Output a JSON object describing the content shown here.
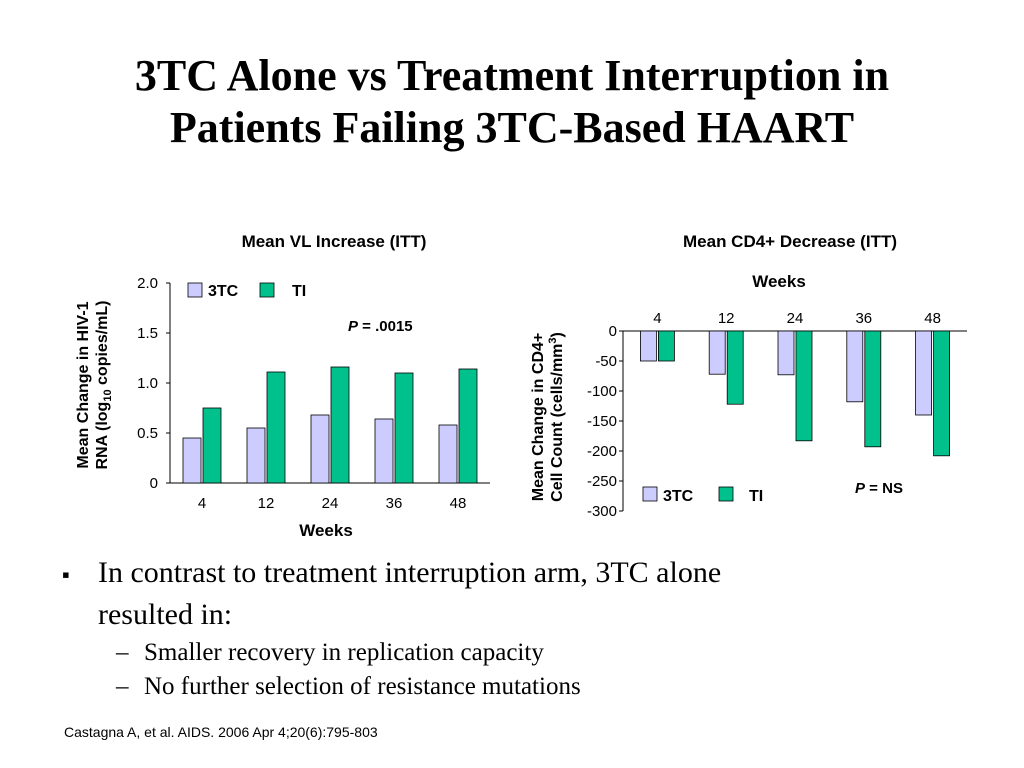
{
  "slide": {
    "title_line1": "3TC Alone vs Treatment Interruption in",
    "title_line2": "Patients Failing 3TC-Based HAART",
    "bullet_text_line1": "In contrast to treatment interruption arm, 3TC alone",
    "bullet_text_line2": "resulted in:",
    "sub_bullets": [
      "Smaller recovery in replication capacity",
      "No further selection of resistance mutations"
    ],
    "citation": "Castagna A, et al. AIDS. 2006 Apr 4;20(6):795-803"
  },
  "colors": {
    "series_3tc": "#ccccff",
    "series_ti": "#00c08b",
    "axis": "#000000"
  },
  "chart_data": [
    {
      "type": "bar",
      "title": "Mean VL Increase (ITT)",
      "xlabel": "Weeks",
      "ylabel_line1": "Mean Change in HIV-1",
      "ylabel_line2_pre": "RNA (log",
      "ylabel_line2_sub": "10",
      "ylabel_line2_post": " copies/mL)",
      "ylim": [
        0,
        2.0
      ],
      "ytick_labels": [
        "0",
        "0.5",
        "1.0",
        "1.5",
        "2.0"
      ],
      "categories": [
        "4",
        "12",
        "24",
        "36",
        "48"
      ],
      "series": [
        {
          "name": "3TC",
          "values": [
            0.45,
            0.55,
            0.68,
            0.64,
            0.58
          ]
        },
        {
          "name": "TI",
          "values": [
            0.75,
            1.11,
            1.16,
            1.1,
            1.14
          ]
        }
      ],
      "annotation_p": "P",
      "annotation_rest": " = .0015",
      "legend": "top-left"
    },
    {
      "type": "bar",
      "title": "Mean CD4+ Decrease (ITT)",
      "xlabel": "Weeks",
      "xaxis_position": "top",
      "ylabel_line1": "Mean Change in CD4+",
      "ylabel_line2_pre": "Cell Count (cells/mm",
      "ylabel_line2_sup": "3",
      "ylabel_line2_post": ")",
      "ylim": [
        -300,
        0
      ],
      "ytick_labels": [
        "0",
        "-50",
        "-100",
        "-150",
        "-200",
        "-250",
        "-300"
      ],
      "categories": [
        "4",
        "12",
        "24",
        "36",
        "48"
      ],
      "series": [
        {
          "name": "3TC",
          "values": [
            -50,
            -72,
            -73,
            -118,
            -140
          ]
        },
        {
          "name": "TI",
          "values": [
            -50,
            -122,
            -183,
            -193,
            -208
          ]
        }
      ],
      "annotation_p": "P",
      "annotation_rest": " = NS",
      "legend": "bottom-left"
    }
  ]
}
